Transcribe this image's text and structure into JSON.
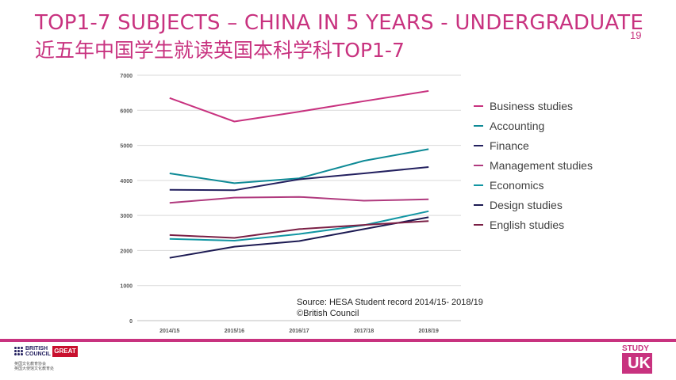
{
  "header": {
    "title_en": "TOP1-7 SUBJECTS – CHINA IN 5 YEARS - UNDERGRADUATE",
    "title_cn": "近五年中国学生就读英国本科学科TOP1-7",
    "page_number": "19"
  },
  "source_note": {
    "line1": "Source: HESA Student record 2014/15- 2018/19",
    "line2": "©British Council"
  },
  "footer": {
    "british_council_line1": "BRITISH",
    "british_council_line2": "COUNCIL",
    "british_council_cn1": "英国文化教育协会",
    "british_council_cn2": "英国大使馆文化教育处",
    "great_label": "GREAT",
    "study_label": "STUDY",
    "uk_label": "UK"
  },
  "colors": {
    "accent": "#c8327f",
    "gridline": "#d9d9d9"
  },
  "chart_data": {
    "type": "line",
    "title": "",
    "xlabel": "",
    "ylabel": "",
    "categories": [
      "2014/15",
      "2015/16",
      "2016/17",
      "2017/18",
      "2018/19"
    ],
    "ylim": [
      0,
      7000
    ],
    "yticks": [
      "0",
      "1000",
      "2000",
      "3000",
      "4000",
      "5000",
      "6000",
      "7000"
    ],
    "grid": true,
    "legend_position": "right",
    "series": [
      {
        "name": "Business studies",
        "color": "#c8327f",
        "values": [
          6350,
          5680,
          5960,
          6260,
          6550
        ]
      },
      {
        "name": "Accounting",
        "color": "#0e8a96",
        "values": [
          4200,
          3920,
          4060,
          4560,
          4890
        ]
      },
      {
        "name": "Finance",
        "color": "#23205f",
        "values": [
          3730,
          3720,
          4030,
          4200,
          4380
        ]
      },
      {
        "name": "Management studies",
        "color": "#b03a7e",
        "values": [
          3360,
          3510,
          3530,
          3420,
          3460
        ]
      },
      {
        "name": "Economics",
        "color": "#1296a3",
        "values": [
          2330,
          2280,
          2470,
          2720,
          3120
        ]
      },
      {
        "name": "Design studies",
        "color": "#1c1a52",
        "values": [
          1790,
          2110,
          2270,
          2610,
          2950
        ]
      },
      {
        "name": "English studies",
        "color": "#7a1f45",
        "values": [
          2440,
          2360,
          2610,
          2730,
          2840
        ]
      }
    ]
  }
}
